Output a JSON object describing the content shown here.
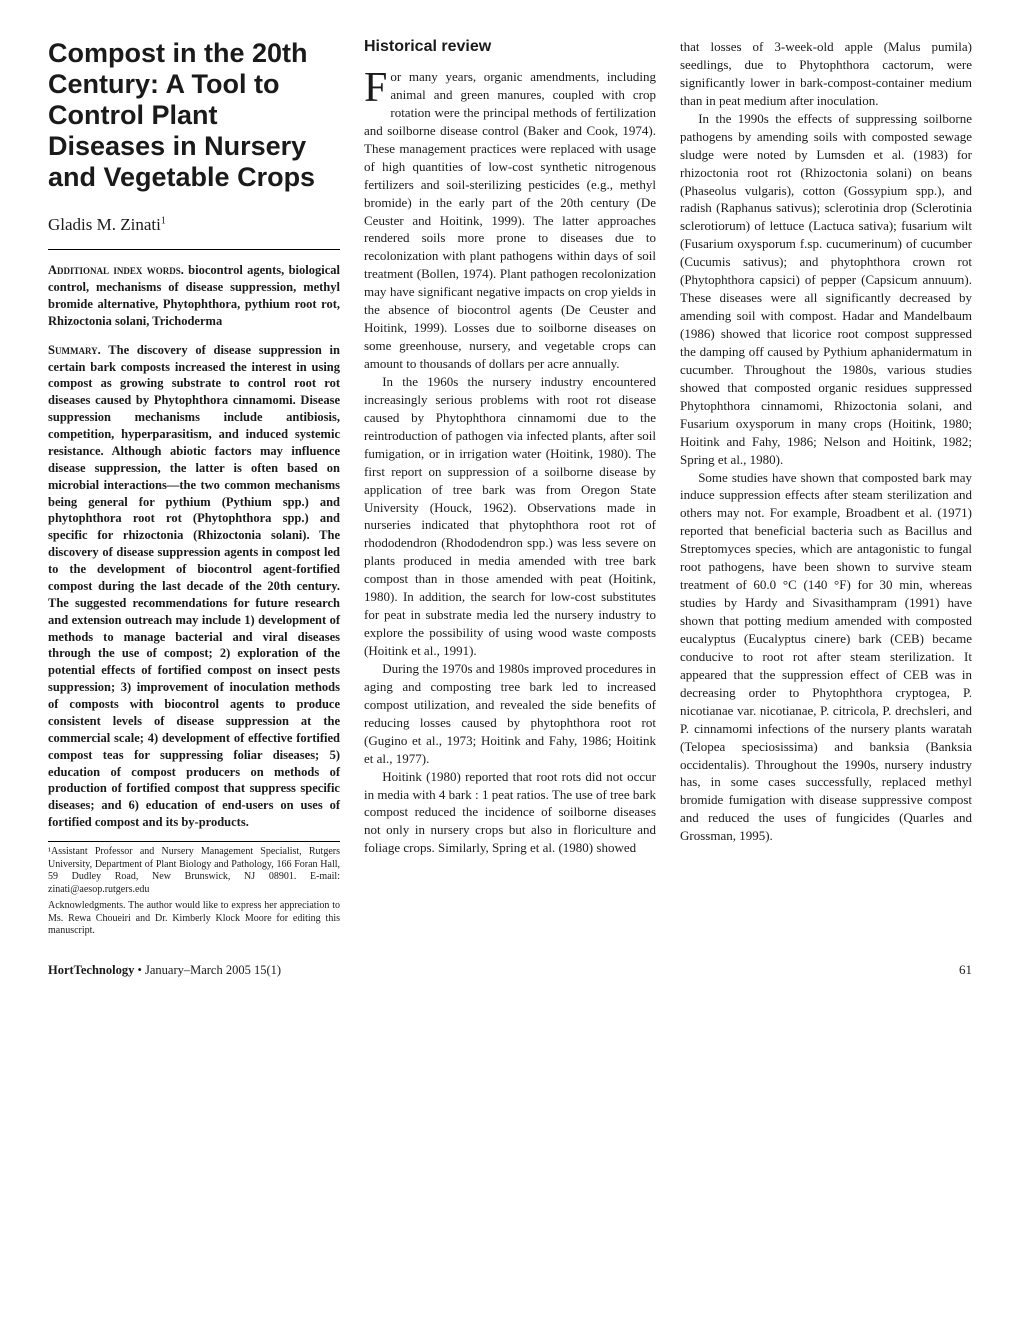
{
  "title": "Compost in the 20th Century: A Tool to Control Plant Diseases in Nursery and Vegetable Crops",
  "author": "Gladis M. Zinati",
  "author_super": "1",
  "index_words": {
    "label": "Additional index words.",
    "text": " biocontrol agents, biological control, mechanisms of disease suppression, methyl bromide alternative, Phytophthora, pythium root rot, Rhizoctonia solani, Trichoderma"
  },
  "summary": {
    "label": "Summary.",
    "text": " The discovery of disease suppression in certain bark composts increased the interest in using compost as growing substrate to control root rot diseases caused by Phytophthora cinnamomi. Disease suppression mechanisms include antibiosis, competition, hyperparasitism, and induced systemic resistance. Although abiotic factors may influence disease suppression, the latter is often based on microbial interactions—the two common mechanisms being general for pythium (Pythium spp.) and phytophthora root rot (Phytophthora spp.) and specific for rhizoctonia (Rhizoctonia solani). The discovery of disease suppression agents in compost led to the development of biocontrol agent-fortified compost during the last decade of the 20th century. The suggested recommendations for future research and extension outreach may include 1) development of methods to manage bacterial and viral diseases through the use of compost; 2) exploration of the potential effects of fortified compost on insect pests suppression; 3) improvement of inoculation methods of composts with biocontrol agents to produce consistent levels of disease suppression at the commercial scale; 4) development of effective fortified compost teas for suppressing foliar diseases; 5) education of compost producers on methods of production of fortified compost that suppress specific diseases; and 6) education of end-users on uses of fortified compost and its by-products."
  },
  "footnotes": {
    "fn1": "¹Assistant Professor and Nursery Management Specialist, Rutgers University, Department of Plant Biology and Pathology, 166 Foran Hall, 59 Dudley Road, New Brunswick, NJ 08901. E-mail: zinati@aesop.rutgers.edu",
    "fn2": "Acknowledgments. The author would like to express her appreciation to Ms. Rewa Choueiri and Dr. Kimberly Klock Moore for editing this manuscript."
  },
  "section_head": "Historical review",
  "col2": {
    "p1_dropcap": "F",
    "p1": "or many years, organic amendments, including animal and green manures, coupled with crop rotation were the principal methods of fertilization and soilborne disease control (Baker and Cook, 1974). These management practices were replaced with usage of high quantities of low-cost synthetic nitrogenous fertilizers and soil-sterilizing pesticides (e.g., methyl bromide) in the early part of the 20th century (De Ceuster and Hoitink, 1999). The latter approaches rendered soils more prone to diseases due to recolonization with plant pathogens within days of soil treatment (Bollen, 1974). Plant pathogen recolonization may have significant negative impacts on crop yields in the absence of biocontrol agents (De Ceuster and Hoitink, 1999). Losses due to soilborne diseases on some greenhouse, nursery, and vegetable crops can amount to thousands of dollars per acre annually.",
    "p2": "In the 1960s the nursery industry encountered increasingly serious problems with root rot disease caused by Phytophthora cinnamomi due to the reintroduction of pathogen via infected plants, after soil fumigation, or in irrigation water (Hoitink, 1980). The first report on suppression of a soilborne disease by application of tree bark was from Oregon State University (Houck, 1962). Observations made in nurseries indicated that phytophthora root rot of rhododendron (Rhododendron spp.) was less severe on plants produced in media amended with tree bark compost than in those amended with peat (Hoitink, 1980). In addition, the search for low-cost substitutes for peat in substrate media led the nursery industry to explore the possibility of using wood waste composts (Hoitink et al., 1991).",
    "p3": "During the 1970s and 1980s improved procedures in aging and composting tree bark led to increased compost utilization, and revealed the side benefits of reducing losses caused by phytophthora root rot (Gugino et al., 1973; Hoitink and Fahy, 1986; Hoitink et al., 1977).",
    "p4": "Hoitink (1980) reported that root rots did not occur in media with 4 bark : 1 peat ratios. The use of tree bark compost reduced the incidence of soilborne diseases not only in nursery crops but also in floriculture and foliage crops. Similarly, Spring et al. (1980) showed"
  },
  "col3": {
    "p1": "that losses of 3-week-old apple (Malus pumila) seedlings, due to Phytophthora cactorum, were significantly lower in bark-compost-container medium than in peat medium after inoculation.",
    "p2": "In the 1990s the effects of suppressing soilborne pathogens by amending soils with composted sewage sludge were noted by Lumsden et al. (1983) for rhizoctonia root rot (Rhizoctonia solani) on beans (Phaseolus vulgaris), cotton (Gossypium spp.), and radish (Raphanus sativus); sclerotinia drop (Sclerotinia sclerotiorum) of lettuce (Lactuca sativa); fusarium wilt (Fusarium oxysporum f.sp. cucumerinum) of cucumber (Cucumis sativus); and phytophthora crown rot (Phytophthora capsici) of pepper (Capsicum annuum). These diseases were all significantly decreased by amending soil with compost. Hadar and Mandelbaum (1986) showed that licorice root compost suppressed the damping off caused by Pythium aphanidermatum in cucumber. Throughout the 1980s, various studies showed that composted organic residues suppressed Phytophthora cinnamomi, Rhizoctonia solani, and Fusarium oxysporum in many crops (Hoitink, 1980; Hoitink and Fahy, 1986; Nelson and Hoitink, 1982; Spring et al., 1980).",
    "p3": "Some studies have shown that composted bark may induce suppression effects after steam sterilization and others may not. For example, Broadbent et al. (1971) reported that beneficial bacteria such as Bacillus and Streptomyces species, which are antagonistic to fungal root pathogens, have been shown to survive steam treatment of 60.0 °C (140 °F) for 30 min, whereas studies by Hardy and Sivasithampram (1991) have shown that potting medium amended with composted eucalyptus (Eucalyptus cinere) bark (CEB) became conducive to root rot after steam sterilization. It appeared that the suppression effect of CEB was in decreasing order to Phytophthora cryptogea, P. nicotianae var. nicotianae, P. citricola, P. drechsleri, and P. cinnamomi infections of the nursery plants waratah (Telopea speciosissima) and banksia (Banksia occidentalis). Throughout the 1990s, nursery industry has, in some cases successfully, replaced methyl bromide fumigation with disease suppressive compost and reduced the uses of fungicides (Quarles and Grossman, 1995)."
  },
  "footer": {
    "journal": "HortTechnology",
    "issue": " • January–March 2005 15(1)",
    "pagenum": "61"
  }
}
